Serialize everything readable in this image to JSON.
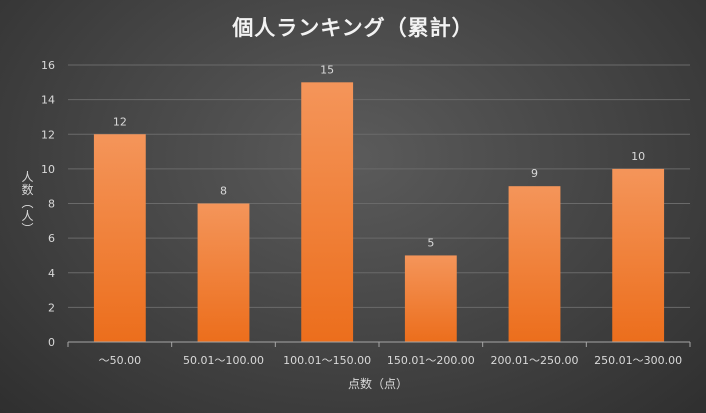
{
  "chart_data": {
    "type": "bar",
    "title": "個人ランキング（累計）",
    "xlabel": "点数（点）",
    "ylabel": "人数（人）",
    "categories": [
      "～50.00",
      "50.01～100.00",
      "100.01～150.00",
      "150.01～200.00",
      "200.01～250.00",
      "250.01～300.00"
    ],
    "values": [
      12,
      8,
      15,
      5,
      9,
      10
    ],
    "ylim": [
      0,
      16
    ],
    "yticks": [
      0,
      2,
      4,
      6,
      8,
      10,
      12,
      14,
      16
    ],
    "grid": true,
    "legend": "none",
    "colors": {
      "bar_top": "#f4955a",
      "bar_bottom": "#ec6e1c",
      "grid": "#6a6a6a",
      "text": "#d9d9d9"
    }
  }
}
